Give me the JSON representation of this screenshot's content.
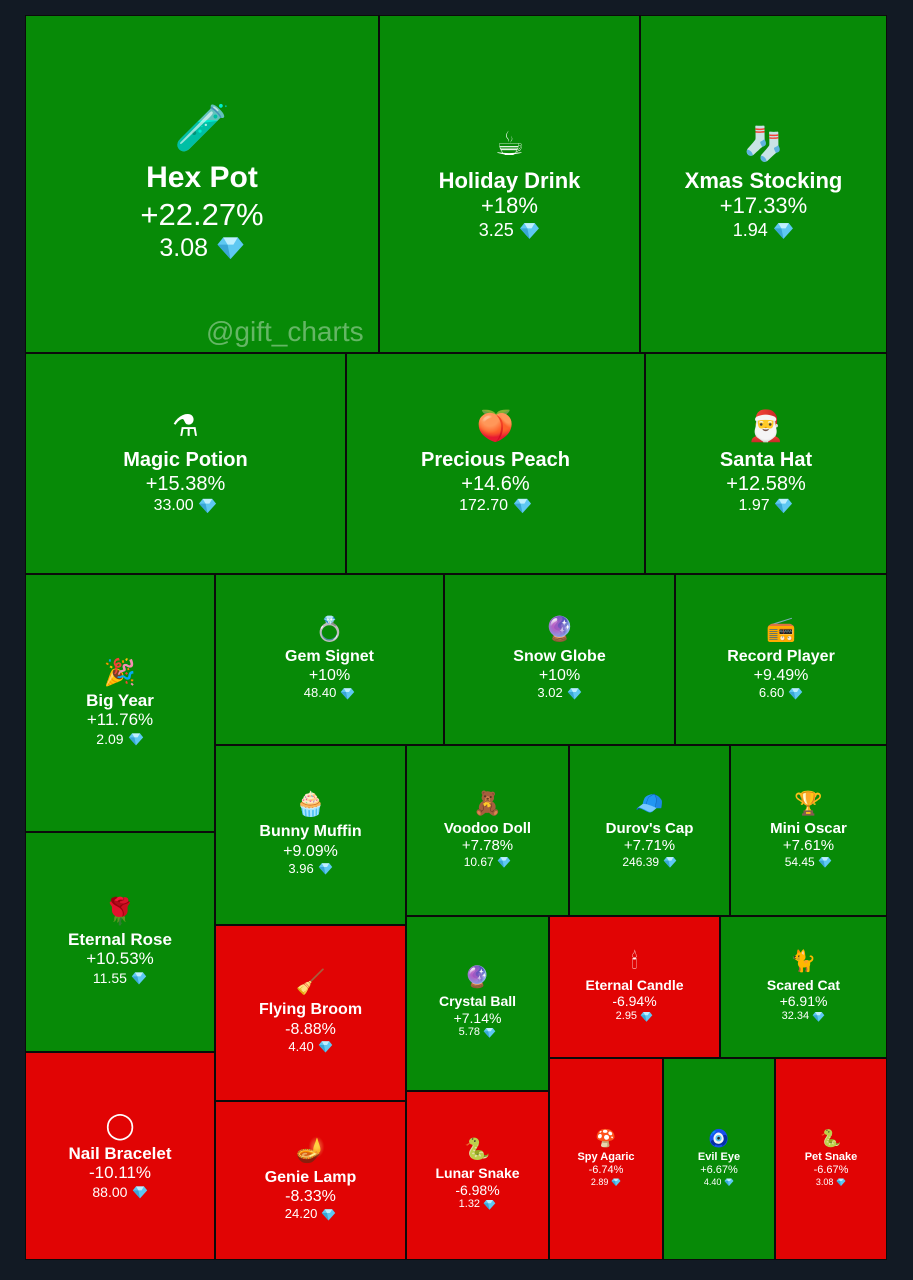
{
  "watermark": "@gift_charts",
  "colors": {
    "up": "#078a07",
    "down": "#e10404",
    "background": "#121a24",
    "diamond": "#5ec8f2"
  },
  "chart_data": {
    "type": "heatmap",
    "price_unit_icon": "diamond-icon",
    "items": [
      {
        "name": "Hex Pot",
        "change": "+22.27%",
        "change_value": 22.27,
        "price": "3.08",
        "icon": "cauldron-icon",
        "emoji": "🧪"
      },
      {
        "name": "Holiday Drink",
        "change": "+18%",
        "change_value": 18,
        "price": "3.25",
        "icon": "cocoa-mug-icon",
        "emoji": "☕"
      },
      {
        "name": "Xmas Stocking",
        "change": "+17.33%",
        "change_value": 17.33,
        "price": "1.94",
        "icon": "stocking-icon",
        "emoji": "🧦"
      },
      {
        "name": "Magic Potion",
        "change": "+15.38%",
        "change_value": 15.38,
        "price": "33.00",
        "icon": "potion-bottle-icon",
        "emoji": "⚗"
      },
      {
        "name": "Precious Peach",
        "change": "+14.6%",
        "change_value": 14.6,
        "price": "172.70",
        "icon": "peach-icon",
        "emoji": "🍑"
      },
      {
        "name": "Santa Hat",
        "change": "+12.58%",
        "change_value": 12.58,
        "price": "1.97",
        "icon": "santa-hat-icon",
        "emoji": "🎅"
      },
      {
        "name": "Big Year",
        "change": "+11.76%",
        "change_value": 11.76,
        "price": "2.09",
        "icon": "big-year-icon",
        "emoji": "🎉"
      },
      {
        "name": "Gem Signet",
        "change": "+10%",
        "change_value": 10,
        "price": "48.40",
        "icon": "ring-icon",
        "emoji": "💍"
      },
      {
        "name": "Snow Globe",
        "change": "+10%",
        "change_value": 10,
        "price": "3.02",
        "icon": "snow-globe-icon",
        "emoji": "🔮"
      },
      {
        "name": "Record Player",
        "change": "+9.49%",
        "change_value": 9.49,
        "price": "6.60",
        "icon": "record-player-icon",
        "emoji": "📻"
      },
      {
        "name": "Eternal Rose",
        "change": "+10.53%",
        "change_value": 10.53,
        "price": "11.55",
        "icon": "rose-dome-icon",
        "emoji": "🌹"
      },
      {
        "name": "Bunny Muffin",
        "change": "+9.09%",
        "change_value": 9.09,
        "price": "3.96",
        "icon": "muffin-icon",
        "emoji": "🧁"
      },
      {
        "name": "Voodoo Doll",
        "change": "+7.78%",
        "change_value": 7.78,
        "price": "10.67",
        "icon": "voodoo-doll-icon",
        "emoji": "🧸"
      },
      {
        "name": "Durov's Cap",
        "change": "+7.71%",
        "change_value": 7.71,
        "price": "246.39",
        "icon": "cap-icon",
        "emoji": "🧢"
      },
      {
        "name": "Mini Oscar",
        "change": "+7.61%",
        "change_value": 7.61,
        "price": "54.45",
        "icon": "oscar-statue-icon",
        "emoji": "🏆"
      },
      {
        "name": "Nail Bracelet",
        "change": "-10.11%",
        "change_value": -10.11,
        "price": "88.00",
        "icon": "bracelet-icon",
        "emoji": "◯"
      },
      {
        "name": "Flying Broom",
        "change": "-8.88%",
        "change_value": -8.88,
        "price": "4.40",
        "icon": "broom-icon",
        "emoji": "🧹"
      },
      {
        "name": "Genie Lamp",
        "change": "-8.33%",
        "change_value": -8.33,
        "price": "24.20",
        "icon": "genie-lamp-icon",
        "emoji": "🪔"
      },
      {
        "name": "Crystal Ball",
        "change": "+7.14%",
        "change_value": 7.14,
        "price": "5.78",
        "icon": "crystal-ball-icon",
        "emoji": "🔮"
      },
      {
        "name": "Lunar Snake",
        "change": "-6.98%",
        "change_value": -6.98,
        "price": "1.32",
        "icon": "lunar-snake-icon",
        "emoji": "🐍"
      },
      {
        "name": "Eternal Candle",
        "change": "-6.94%",
        "change_value": -6.94,
        "price": "2.95",
        "icon": "candle-icon",
        "emoji": "🕯"
      },
      {
        "name": "Scared Cat",
        "change": "+6.91%",
        "change_value": 6.91,
        "price": "32.34",
        "icon": "black-cat-icon",
        "emoji": "🐈"
      },
      {
        "name": "Spy Agaric",
        "change": "-6.74%",
        "change_value": -6.74,
        "price": "2.89",
        "icon": "mushroom-icon",
        "emoji": "🍄"
      },
      {
        "name": "Evil Eye",
        "change": "+6.67%",
        "change_value": 6.67,
        "price": "4.40",
        "icon": "evil-eye-icon",
        "emoji": "🧿"
      },
      {
        "name": "Pet Snake",
        "change": "-6.67%",
        "change_value": -6.67,
        "price": "3.08",
        "icon": "pet-snake-icon",
        "emoji": "🐍"
      }
    ]
  }
}
